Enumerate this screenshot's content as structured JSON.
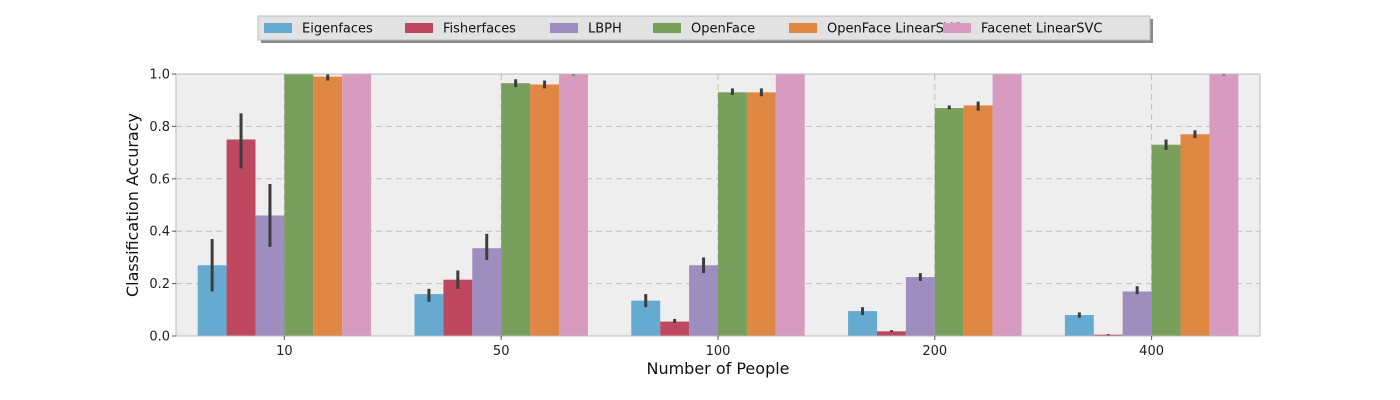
{
  "chart_data": {
    "type": "bar",
    "title": "",
    "xlabel": "Number of People",
    "ylabel": "Classification Accuracy",
    "ylim": [
      0,
      1.0
    ],
    "yticks": [
      "0.0",
      "0.2",
      "0.4",
      "0.6",
      "0.8",
      "1.0"
    ],
    "grid": true,
    "legend_position": "top-center",
    "categories": [
      "10",
      "50",
      "100",
      "200",
      "400"
    ],
    "series": [
      {
        "name": "Eigenfaces",
        "color": "#66A9D1",
        "values": [
          0.27,
          0.16,
          0.135,
          0.095,
          0.08
        ],
        "err_low": [
          0.17,
          0.13,
          0.11,
          0.08,
          0.07
        ],
        "err_high": [
          0.37,
          0.18,
          0.16,
          0.11,
          0.09
        ]
      },
      {
        "name": "Fisherfaces",
        "color": "#BD4860",
        "values": [
          0.75,
          0.215,
          0.055,
          0.018,
          0.005
        ],
        "err_low": [
          0.64,
          0.18,
          0.05,
          0.015,
          0.003
        ],
        "err_high": [
          0.85,
          0.25,
          0.065,
          0.022,
          0.007
        ]
      },
      {
        "name": "LBPH",
        "color": "#9E8DBF",
        "values": [
          0.46,
          0.335,
          0.27,
          0.225,
          0.17
        ],
        "err_low": [
          0.34,
          0.29,
          0.24,
          0.21,
          0.16
        ],
        "err_high": [
          0.58,
          0.39,
          0.3,
          0.24,
          0.19
        ]
      },
      {
        "name": "OpenFace",
        "color": "#789F5B",
        "values": [
          1.0,
          0.965,
          0.93,
          0.87,
          0.73
        ],
        "err_low": [
          1.0,
          0.95,
          0.92,
          0.865,
          0.71
        ],
        "err_high": [
          1.0,
          0.98,
          0.945,
          0.88,
          0.75
        ]
      },
      {
        "name": "OpenFace LinearSVC",
        "color": "#DF8843",
        "values": [
          0.99,
          0.96,
          0.93,
          0.88,
          0.77
        ],
        "err_low": [
          0.975,
          0.945,
          0.915,
          0.86,
          0.755
        ],
        "err_high": [
          1.0,
          0.975,
          0.945,
          0.895,
          0.785
        ]
      },
      {
        "name": "Facenet LinearSVC",
        "color": "#D69BBF",
        "values": [
          1.0,
          1.0,
          1.0,
          1.0,
          1.0
        ],
        "err_low": [
          1.0,
          0.995,
          1.0,
          1.0,
          0.995
        ],
        "err_high": [
          1.0,
          1.0,
          1.0,
          1.0,
          1.0
        ]
      }
    ]
  }
}
